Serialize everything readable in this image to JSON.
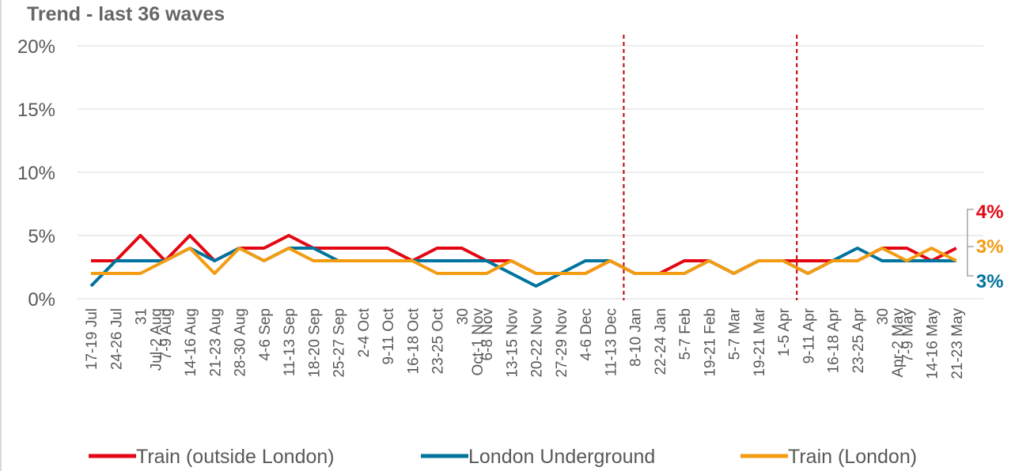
{
  "panel": {
    "title": "Trend - last 36 waves"
  },
  "colors": {
    "train_outside_london": "#e30613",
    "london_underground": "#00739e",
    "train_london": "#f39c12",
    "marker_line": "#c00000",
    "grid": "#d9d9d9",
    "axis_text": "#595959"
  },
  "chart_data": {
    "type": "line",
    "title": "",
    "subtitle": "Trend - last 36 waves",
    "xlabel": "",
    "ylabel": "",
    "ylim": [
      0,
      20
    ],
    "yticks": [
      "0%",
      "5%",
      "10%",
      "15%",
      "20%"
    ],
    "grid": true,
    "legend_position": "bottom",
    "x": [
      "17-19 Jul",
      "24-26 Jul",
      "31 Jul-2 Aug",
      "7-9 Aug",
      "14-16 Aug",
      "21-23 Aug",
      "28-30 Aug",
      "4-6 Sep",
      "11-13 Sep",
      "18-20 Sep",
      "25-27 Sep",
      "2-4 Oct",
      "9-11 Oct",
      "16-18 Oct",
      "23-25 Oct",
      "30 Oct-1 Nov",
      "6-8 Nov",
      "13-15 Nov",
      "20-22 Nov",
      "27-29 Nov",
      "4-6 Dec",
      "11-13 Dec",
      "8-10 Jan",
      "22-24 Jan",
      "5-7 Feb",
      "19-21 Feb",
      "5-7 Mar",
      "19-21 Mar",
      "1-5 Apr",
      "9-11 Apr",
      "16-18 Apr",
      "23-25 Apr",
      "30 Apr-2 May",
      "7-9 May",
      "14-16 May",
      "21-23 May"
    ],
    "x_display": [
      [
        "17-19 Jul"
      ],
      [
        "24-26 Jul"
      ],
      [
        "31",
        "Jul-2 Aug"
      ],
      [
        "7-9 Aug"
      ],
      [
        "14-16 Aug"
      ],
      [
        "21-23 Aug"
      ],
      [
        "28-30 Aug"
      ],
      [
        "4-6 Sep"
      ],
      [
        "11-13 Sep"
      ],
      [
        "18-20 Sep"
      ],
      [
        "25-27 Sep"
      ],
      [
        "2-4 Oct"
      ],
      [
        "9-11 Oct"
      ],
      [
        "16-18 Oct"
      ],
      [
        "23-25 Oct"
      ],
      [
        "30",
        "Oct-1 Nov"
      ],
      [
        "6-8 Nov"
      ],
      [
        "13-15 Nov"
      ],
      [
        "20-22 Nov"
      ],
      [
        "27-29 Nov"
      ],
      [
        "4-6 Dec"
      ],
      [
        "11-13 Dec"
      ],
      [
        "8-10 Jan"
      ],
      [
        "22-24 Jan"
      ],
      [
        "5-7 Feb"
      ],
      [
        "19-21 Feb"
      ],
      [
        "5-7 Mar"
      ],
      [
        "19-21 Mar"
      ],
      [
        "1-5 Apr"
      ],
      [
        "9-11 Apr"
      ],
      [
        "16-18 Apr"
      ],
      [
        "23-25 Apr"
      ],
      [
        "30",
        "Apr-2 May"
      ],
      [
        "7-9 May"
      ],
      [
        "14-16 May"
      ],
      [
        "21-23 May"
      ]
    ],
    "series": [
      {
        "name": "Train (outside London)",
        "color": "#e30613",
        "values": [
          3,
          3,
          5,
          3,
          5,
          3,
          4,
          4,
          5,
          4,
          4,
          4,
          4,
          3,
          4,
          4,
          3,
          3,
          2,
          2,
          2,
          3,
          2,
          2,
          3,
          3,
          2,
          3,
          3,
          3,
          3,
          3,
          4,
          4,
          3,
          4
        ],
        "end_label": "4%"
      },
      {
        "name": "London Underground",
        "color": "#00739e",
        "values": [
          1,
          3,
          3,
          3,
          4,
          3,
          4,
          3,
          4,
          4,
          3,
          3,
          3,
          3,
          3,
          3,
          3,
          2,
          1,
          2,
          3,
          3,
          2,
          2,
          2,
          3,
          2,
          3,
          3,
          2,
          3,
          4,
          3,
          3,
          3,
          3
        ],
        "end_label": "3%"
      },
      {
        "name": "Train (London)",
        "color": "#f39c12",
        "values": [
          2,
          2,
          2,
          3,
          4,
          2,
          4,
          3,
          4,
          3,
          3,
          3,
          3,
          3,
          2,
          2,
          2,
          3,
          2,
          2,
          2,
          3,
          2,
          2,
          2,
          3,
          2,
          3,
          3,
          2,
          3,
          3,
          4,
          3,
          4,
          3
        ],
        "end_label": "3%"
      }
    ],
    "vertical_markers": [
      "11-13 Dec",
      "1-5 Apr"
    ]
  }
}
